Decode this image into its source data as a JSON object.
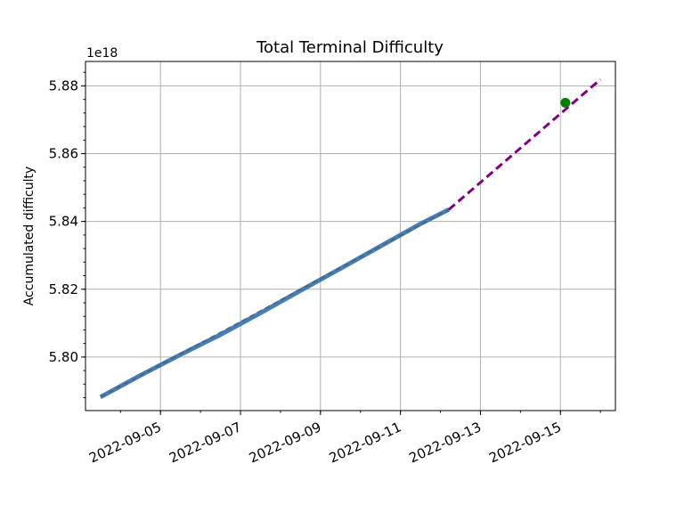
{
  "chart_data": {
    "type": "line",
    "title": "Total Terminal Difficulty",
    "ylabel": "Accumulated difficulty",
    "xlabel": "",
    "y_offset_label": "1e18",
    "x_axis": {
      "kind": "date",
      "range": [
        "2022-09-03 03:00",
        "2022-09-16 09:00"
      ]
    },
    "ylim": [
      5.7842,
      5.8872
    ],
    "grid": true,
    "x_ticks": [
      "2022-09-05",
      "2022-09-07",
      "2022-09-09",
      "2022-09-11",
      "2022-09-13",
      "2022-09-15"
    ],
    "y_ticks": [
      5.8,
      5.82,
      5.84,
      5.86,
      5.88
    ],
    "series": [
      {
        "role": "observed",
        "color": "#3a78b4",
        "style": "solid-thick",
        "x": [
          "2022-09-03 12:00",
          "2022-09-04 12:00",
          "2022-09-05 12:00",
          "2022-09-06 12:00",
          "2022-09-07 12:00",
          "2022-09-08 12:00",
          "2022-09-09 12:00",
          "2022-09-10 12:00",
          "2022-09-11 12:00",
          "2022-09-12 05:00"
        ],
        "y": [
          5.7882,
          5.7946,
          5.8007,
          5.8066,
          5.813,
          5.8196,
          5.8261,
          5.8327,
          5.8393,
          5.8435
        ]
      },
      {
        "role": "fit",
        "color": "#555555",
        "style": "dashed",
        "x": [
          "2022-09-03 12:00",
          "2022-09-12 05:00"
        ],
        "y": [
          5.7882,
          5.8435
        ]
      },
      {
        "role": "extrapolation",
        "color": "#800080",
        "style": "dashed",
        "x": [
          "2022-09-12 05:00",
          "2022-09-16 00:00"
        ],
        "y": [
          5.8435,
          5.8819
        ]
      },
      {
        "role": "target",
        "color": "#008000",
        "style": "marker",
        "x": [
          "2022-09-15 03:00"
        ],
        "y": [
          5.875
        ]
      }
    ]
  }
}
